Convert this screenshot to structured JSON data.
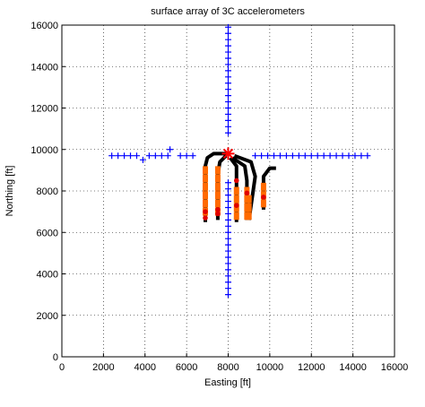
{
  "chart_data": {
    "type": "scatter",
    "title": "surface array of 3C accelerometers",
    "xlabel": "Easting [ft]",
    "ylabel": "Northing [ft]",
    "xlim": [
      0,
      16000
    ],
    "ylim": [
      0,
      16000
    ],
    "xticks": [
      0,
      2000,
      4000,
      6000,
      8000,
      10000,
      12000,
      14000,
      16000
    ],
    "yticks": [
      0,
      2000,
      4000,
      6000,
      8000,
      10000,
      12000,
      14000,
      16000
    ],
    "grid": true,
    "series": [
      {
        "color": "#0000ff",
        "marker": "+",
        "line": false,
        "x": [
          2400,
          2700,
          3000,
          3300,
          3600,
          3900,
          4200,
          4500,
          4800,
          5100,
          5200,
          5700,
          6000,
          6300,
          9300,
          9600,
          9900,
          10200,
          10500,
          10800,
          11100,
          11400,
          11700,
          12000,
          12300,
          12600,
          12900,
          13200,
          13500,
          13800,
          14100,
          14400,
          14700,
          8000,
          8000,
          8000,
          8000,
          8000,
          8000,
          8000,
          8000,
          8000,
          8000,
          8000,
          8000,
          8000,
          8000,
          8000,
          8000,
          8000,
          8000,
          8000,
          8000,
          8000,
          8000,
          8000,
          8000,
          8000,
          8000,
          8000,
          8000,
          8000,
          8000,
          8000,
          8000,
          8000,
          8000,
          8000,
          8000,
          8000
        ],
        "y": [
          9700,
          9700,
          9700,
          9700,
          9700,
          9500,
          9700,
          9700,
          9700,
          9700,
          10000,
          9700,
          9700,
          9700,
          9700,
          9700,
          9700,
          9700,
          9700,
          9700,
          9700,
          9700,
          9700,
          9700,
          9700,
          9700,
          9700,
          9700,
          9700,
          9700,
          9700,
          9700,
          9700,
          3000,
          3300,
          3600,
          3900,
          4200,
          4500,
          4800,
          5100,
          5400,
          5700,
          6000,
          6300,
          6600,
          6900,
          7200,
          7500,
          7800,
          8100,
          8400,
          10800,
          11100,
          11400,
          11700,
          12000,
          12300,
          12600,
          12900,
          13200,
          13500,
          13800,
          14100,
          14400,
          14700,
          15000,
          15300,
          15600,
          15900
        ]
      },
      {
        "color": "#000000",
        "marker": "none",
        "line": true,
        "x": [
          8000,
          7300,
          7000,
          6900,
          6900,
          null,
          7900,
          7600,
          7500,
          7500,
          null,
          8100,
          8400,
          8400,
          null,
          8200,
          8800,
          8900,
          8900,
          null,
          8300,
          9100,
          9300,
          9000,
          null,
          9700,
          9700,
          10000,
          10300
        ],
        "y": [
          9800,
          9800,
          9600,
          9200,
          6500,
          null,
          9700,
          9400,
          8800,
          6600,
          null,
          9600,
          9200,
          6500,
          null,
          9600,
          9200,
          8500,
          6600,
          null,
          9700,
          9400,
          8700,
          6600,
          null,
          7100,
          8700,
          9100,
          9100
        ]
      },
      {
        "color": "#ff6a00",
        "marker": "square",
        "line": false,
        "x": [
          6900,
          6900,
          6900,
          6900,
          6900,
          6900,
          7500,
          7500,
          7500,
          7500,
          7500,
          7500,
          8400,
          8400,
          8400,
          8400,
          8900,
          8900,
          8900,
          8900,
          9000,
          9000,
          9000,
          9700,
          9700,
          9700
        ],
        "y": [
          7000,
          7400,
          7800,
          8200,
          8600,
          9000,
          7000,
          7400,
          7800,
          8200,
          8600,
          9000,
          6800,
          7200,
          7600,
          8000,
          6800,
          7200,
          7600,
          8000,
          6800,
          7200,
          7600,
          7400,
          7800,
          8200
        ]
      },
      {
        "color": "#e00000",
        "marker": "dot",
        "line": false,
        "x": [
          6900,
          6900,
          7500,
          7500,
          8400,
          8400,
          8900,
          9700
        ],
        "y": [
          6700,
          7000,
          6900,
          7100,
          7300,
          8500,
          7900,
          7700
        ]
      },
      {
        "color": "#ff0000",
        "marker": "star",
        "line": false,
        "x": [
          8000
        ],
        "y": [
          9800
        ]
      }
    ]
  }
}
